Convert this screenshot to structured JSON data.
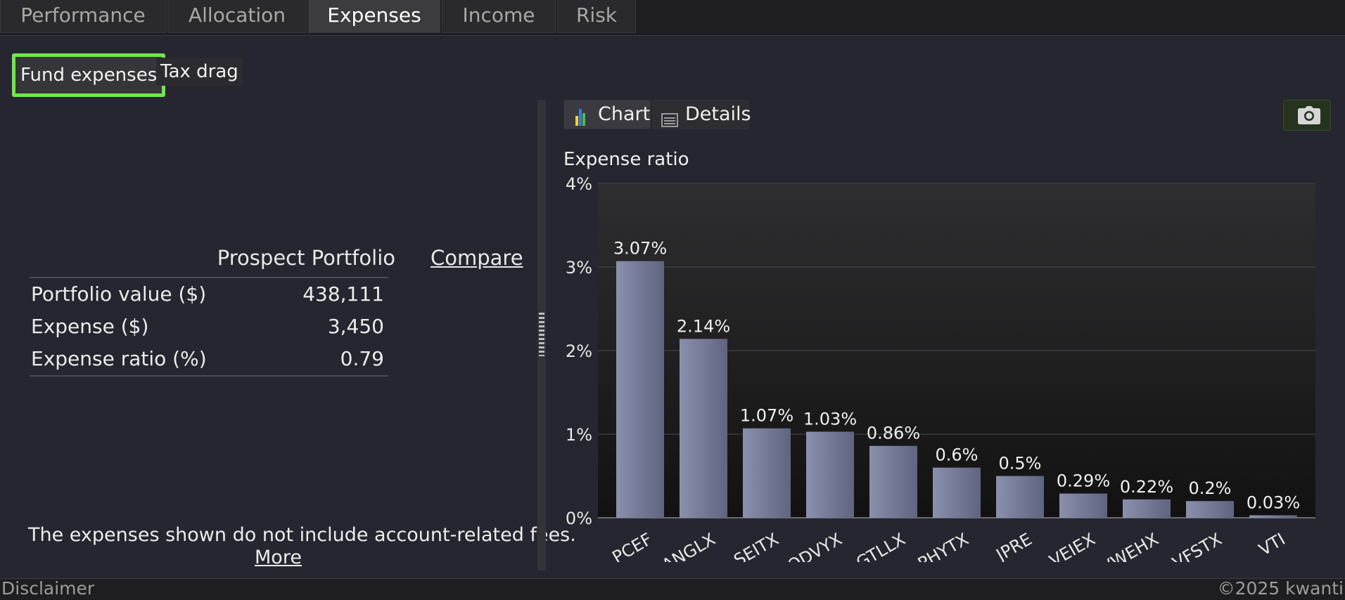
{
  "tabs": [
    {
      "label": "Performance",
      "active": false
    },
    {
      "label": "Allocation",
      "active": false
    },
    {
      "label": "Expenses",
      "active": true
    },
    {
      "label": "Income",
      "active": false
    },
    {
      "label": "Risk",
      "active": false
    }
  ],
  "subtabs": [
    {
      "label": "Fund expenses",
      "active": true
    },
    {
      "label": "Tax drag",
      "active": false
    }
  ],
  "summary": {
    "column_header": "Prospect Portfolio",
    "compare_label": "Compare",
    "rows": [
      {
        "label": "Portfolio value ($)",
        "value": "438,111"
      },
      {
        "label": "Expense ($)",
        "value": "3,450"
      },
      {
        "label": "Expense ratio (%)",
        "value": "0.79"
      }
    ],
    "note": "The expenses shown do not include account-related fees.",
    "more_label": "More"
  },
  "view_toggle": {
    "chart_label": "Chart",
    "details_label": "Details",
    "active": "chart"
  },
  "icons": {
    "chart": "bar-chart-icon",
    "details": "list-icon",
    "export": "camera-icon"
  },
  "colors": {
    "bar": "#7d83a0",
    "plot_bg_top": "#2e2e30",
    "plot_bg_bottom": "#121212",
    "active_subtab_border": "#72e74a"
  },
  "chart_data": {
    "type": "bar",
    "title": "Expense ratio",
    "categories": [
      "PCEF",
      "ANGLX",
      "SEITX",
      "ODVYX",
      "GTLLX",
      "PHYTX",
      "JPRE",
      "VEIEX",
      "VWEHX",
      "VFSTX",
      "VTI"
    ],
    "values": [
      3.07,
      2.14,
      1.07,
      1.03,
      0.86,
      0.6,
      0.5,
      0.29,
      0.22,
      0.2,
      0.03
    ],
    "data_labels": [
      "3.07%",
      "2.14%",
      "1.07%",
      "1.03%",
      "0.86%",
      "0.6%",
      "0.5%",
      "0.29%",
      "0.22%",
      "0.2%",
      "0.03%"
    ],
    "ylim": [
      0,
      4
    ],
    "yticks": [
      0,
      1,
      2,
      3,
      4
    ],
    "ytick_labels": [
      "0%",
      "1%",
      "2%",
      "3%",
      "4%"
    ],
    "grid": true,
    "legend": false
  },
  "footer": {
    "disclaimer": "Disclaimer",
    "copyright": "©2025 kwanti"
  }
}
